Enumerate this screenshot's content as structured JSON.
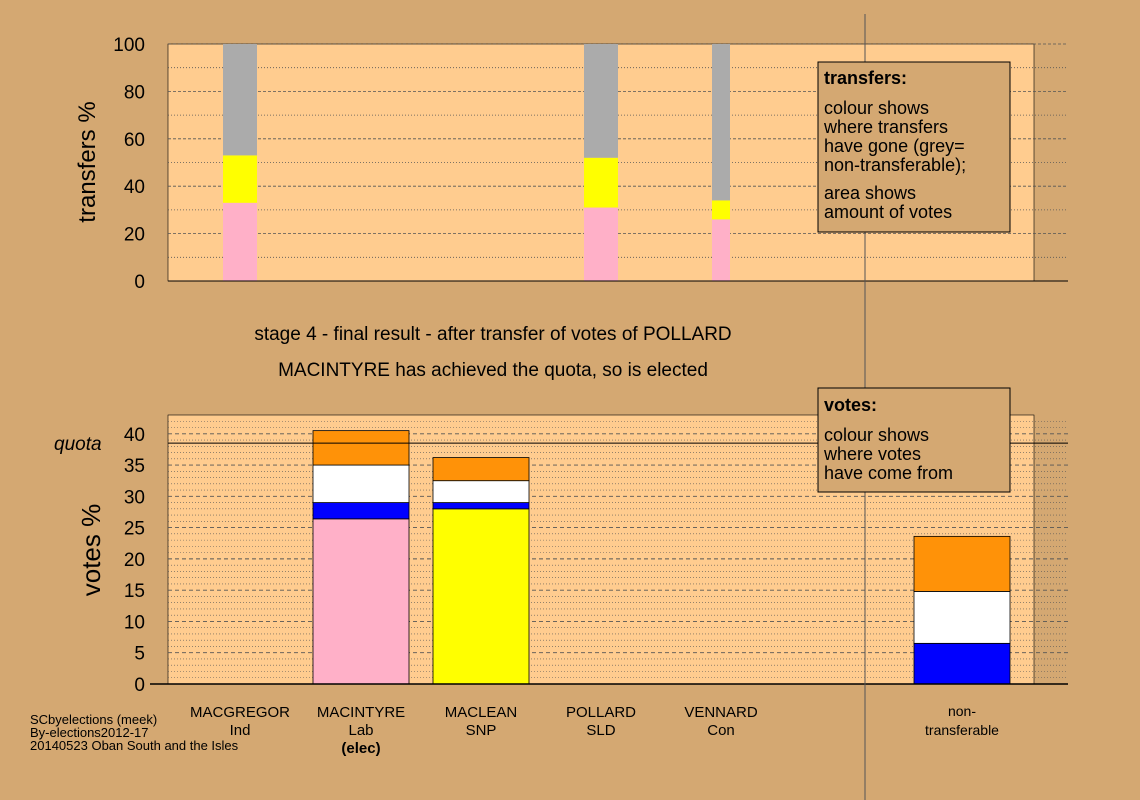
{
  "colors": {
    "background": "#D4A872",
    "plot_bg": "#FFCC8F",
    "grey": "#ABABAB",
    "yellow": "#FFFF00",
    "pink": "#FFB0C8",
    "orange": "#FF9208",
    "white": "#FFFFFF",
    "blue": "#0000FF"
  },
  "stage_text": {
    "line1": "stage 4 - final result - after transfer of votes of POLLARD",
    "line2": "MACINTYRE has achieved the quota, so is elected"
  },
  "legend_transfers": {
    "title": "transfers:",
    "lines": [
      "colour shows",
      "where transfers",
      "have gone (grey=",
      "non-transferable);",
      "area shows",
      "amount of votes"
    ]
  },
  "legend_votes": {
    "title": "votes:",
    "lines": [
      "colour shows",
      "where votes",
      "have come from"
    ]
  },
  "candidates": [
    {
      "name": "MACGREGOR",
      "party": "Ind",
      "note": ""
    },
    {
      "name": "MACINTYRE",
      "party": "Lab",
      "note": "(elec)"
    },
    {
      "name": "MACLEAN",
      "party": "SNP",
      "note": ""
    },
    {
      "name": "POLLARD",
      "party": "SLD",
      "note": ""
    },
    {
      "name": "VENNARD",
      "party": "Con",
      "note": ""
    }
  ],
  "nontransferable_label": [
    "non-",
    "transferable"
  ],
  "footer": [
    "SCbyelections (meek)",
    "By-elections2012-17",
    "20140523 Oban South and the Isles"
  ],
  "chart_data": [
    {
      "type": "bar",
      "stacked": true,
      "ylabel": "transfers %",
      "ylim": [
        0,
        100
      ],
      "yticks": [
        0,
        20,
        40,
        60,
        80,
        100
      ],
      "grid": "dotted",
      "bars": [
        {
          "category": "MACGREGOR",
          "segments": [
            {
              "color": "pink",
              "from": 0,
              "to": 33
            },
            {
              "color": "yellow",
              "from": 33,
              "to": 53
            },
            {
              "color": "grey",
              "from": 53,
              "to": 100
            }
          ]
        },
        {
          "category": "POLLARD",
          "segments": [
            {
              "color": "pink",
              "from": 0,
              "to": 31
            },
            {
              "color": "yellow",
              "from": 31,
              "to": 52
            },
            {
              "color": "grey",
              "from": 52,
              "to": 100
            }
          ]
        },
        {
          "category": "VENNARD",
          "segments": [
            {
              "color": "pink",
              "from": 0,
              "to": 26
            },
            {
              "color": "yellow",
              "from": 26,
              "to": 34
            },
            {
              "color": "grey",
              "from": 34,
              "to": 100
            }
          ]
        }
      ]
    },
    {
      "type": "bar",
      "stacked": true,
      "ylabel": "votes %",
      "ylim": [
        0,
        43
      ],
      "yticks": [
        0,
        5,
        10,
        15,
        20,
        25,
        30,
        35,
        40
      ],
      "grid": "dotted",
      "quota": 38.5,
      "quota_label": "quota",
      "categories": [
        "MACGREGOR",
        "MACINTYRE",
        "MACLEAN",
        "POLLARD",
        "VENNARD",
        "non-transferable"
      ],
      "bars": [
        {
          "category": "MACINTYRE",
          "segments": [
            {
              "color": "pink",
              "from": 0,
              "to": 26.4
            },
            {
              "color": "blue",
              "from": 26.4,
              "to": 29
            },
            {
              "color": "white",
              "from": 29,
              "to": 35
            },
            {
              "color": "orange",
              "from": 35,
              "to": 40.5
            }
          ]
        },
        {
          "category": "MACLEAN",
          "segments": [
            {
              "color": "yellow",
              "from": 0,
              "to": 28
            },
            {
              "color": "blue",
              "from": 28,
              "to": 29
            },
            {
              "color": "white",
              "from": 29,
              "to": 32.5
            },
            {
              "color": "orange",
              "from": 32.5,
              "to": 36.2
            }
          ]
        },
        {
          "category": "non-transferable",
          "segments": [
            {
              "color": "blue",
              "from": 0,
              "to": 6.5
            },
            {
              "color": "white",
              "from": 6.5,
              "to": 14.8
            },
            {
              "color": "orange",
              "from": 14.8,
              "to": 23.6
            }
          ]
        }
      ]
    }
  ]
}
